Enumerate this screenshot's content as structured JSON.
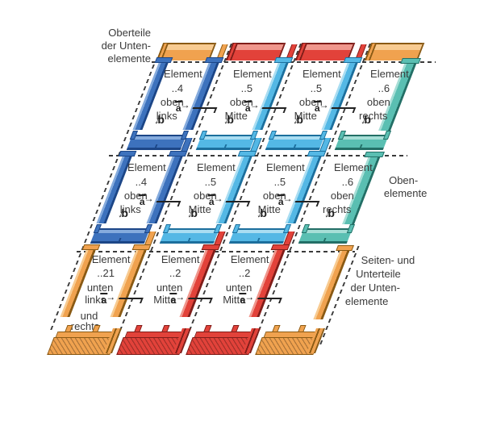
{
  "palette": {
    "blue": {
      "main": "#3d72bd",
      "light": "#85abdd",
      "dark": "#1c4687"
    },
    "lightblue": {
      "main": "#54b8e5",
      "light": "#a9ddf2",
      "dark": "#1c6f9d"
    },
    "teal": {
      "main": "#5abfb2",
      "light": "#a6ded6",
      "dark": "#236f66"
    },
    "orange": {
      "main": "#f0a24f",
      "light": "#f8cb91",
      "dark": "#8a5a14"
    },
    "red": {
      "main": "#e2423a",
      "light": "#f0968c",
      "dark": "#801d19"
    }
  },
  "labels": {
    "top_left": [
      "Oberteile",
      "der Unten-",
      "elemente"
    ],
    "right_mid": [
      "Oben-",
      "elemente"
    ],
    "right_bottom": [
      "Seiten- und",
      "Unterteile",
      "der Unten-",
      "elemente"
    ]
  },
  "dims": {
    "a": "a",
    "b": "b",
    "arrow_right": "→",
    "arrow_down": "↓"
  },
  "caps": [
    "orange",
    "red",
    "red",
    "orange"
  ],
  "cap_slivers": [
    "orange",
    "red",
    "red"
  ],
  "rows": [
    {
      "name": "oben-elemente-row-1",
      "cells": [
        {
          "color": "blue",
          "lines": [
            "Element",
            "..4",
            "oben",
            "links"
          ]
        },
        {
          "color": "lightblue",
          "lines": [
            "Element",
            "..5",
            "oben",
            "Mitte"
          ]
        },
        {
          "color": "lightblue",
          "lines": [
            "Element",
            "..5",
            "oben",
            "Mitte"
          ]
        },
        {
          "color": "teal",
          "lines": [
            "Element",
            "..6",
            "oben",
            "rechts"
          ]
        }
      ]
    },
    {
      "name": "oben-elemente-row-2",
      "cells": [
        {
          "color": "blue",
          "lines": [
            "Element",
            "..4",
            "oben",
            "links"
          ]
        },
        {
          "color": "lightblue",
          "lines": [
            "Element",
            "..5",
            "oben",
            "Mitte"
          ]
        },
        {
          "color": "lightblue",
          "lines": [
            "Element",
            "..5",
            "oben",
            "Mitte"
          ]
        },
        {
          "color": "teal",
          "lines": [
            "Element",
            "..6",
            "oben",
            "rechts"
          ]
        }
      ]
    },
    {
      "name": "unten-elemente-row",
      "cells": [
        {
          "color": "orange",
          "lines": [
            "Element",
            "..21",
            "unten",
            "links",
            "und",
            "rechts"
          ]
        },
        {
          "color": "red",
          "lines": [
            "Element",
            "..2",
            "unten",
            "Mitte"
          ]
        },
        {
          "color": "red",
          "lines": [
            "Element",
            "..2",
            "unten",
            "Mitte"
          ]
        },
        {
          "color": "orange",
          "lines": []
        }
      ]
    }
  ],
  "aprons": [
    "orange",
    "red",
    "red",
    "orange"
  ]
}
